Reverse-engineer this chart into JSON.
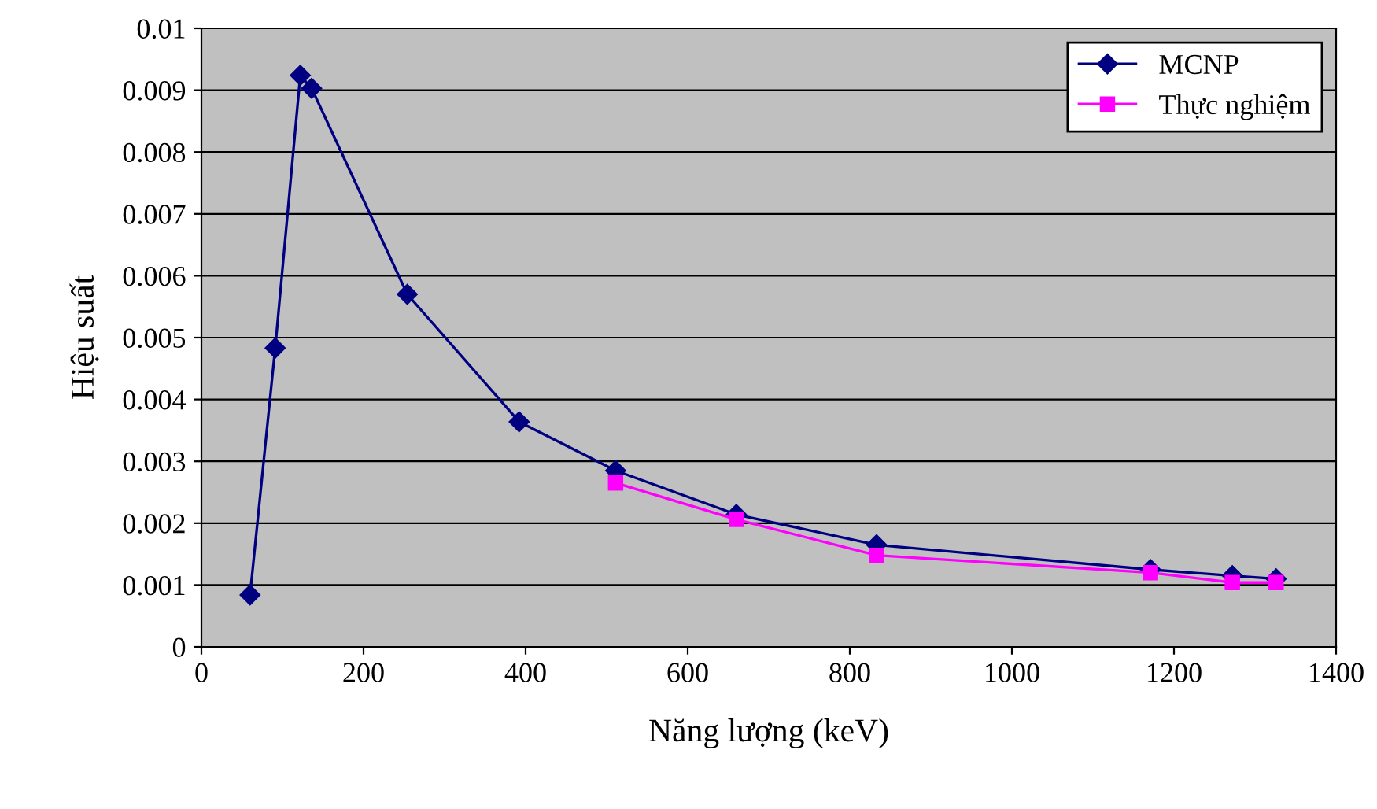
{
  "chart_data": {
    "type": "line",
    "xlabel": "Năng lượng (keV)",
    "ylabel": "Hiệu suất",
    "xlim": [
      0,
      1400
    ],
    "xticks": [
      0,
      200,
      400,
      600,
      800,
      1000,
      1200,
      1400
    ],
    "ylim": [
      0,
      0.01
    ],
    "yticks": [
      0,
      0.001,
      0.002,
      0.003,
      0.004,
      0.005,
      0.006,
      0.007,
      0.008,
      0.009,
      0.01
    ],
    "grid": "y",
    "legend": "top right",
    "series": [
      {
        "name": "MCNP",
        "color": "#000080",
        "marker": "diamond",
        "x": [
          60,
          91,
          122,
          136,
          254,
          392,
          511,
          660,
          833,
          1171,
          1272,
          1326
        ],
        "values": [
          0.00084,
          0.00483,
          0.00924,
          0.00903,
          0.0057,
          0.00364,
          0.00285,
          0.00214,
          0.00165,
          0.00125,
          0.00115,
          0.0011
        ]
      },
      {
        "name": "Thực nghiệm",
        "color": "#ff00ff",
        "marker": "square",
        "x": [
          511,
          660,
          833,
          1171,
          1272,
          1326
        ],
        "values": [
          0.00265,
          0.00206,
          0.00148,
          0.0012,
          0.00104,
          0.00104
        ]
      }
    ]
  }
}
